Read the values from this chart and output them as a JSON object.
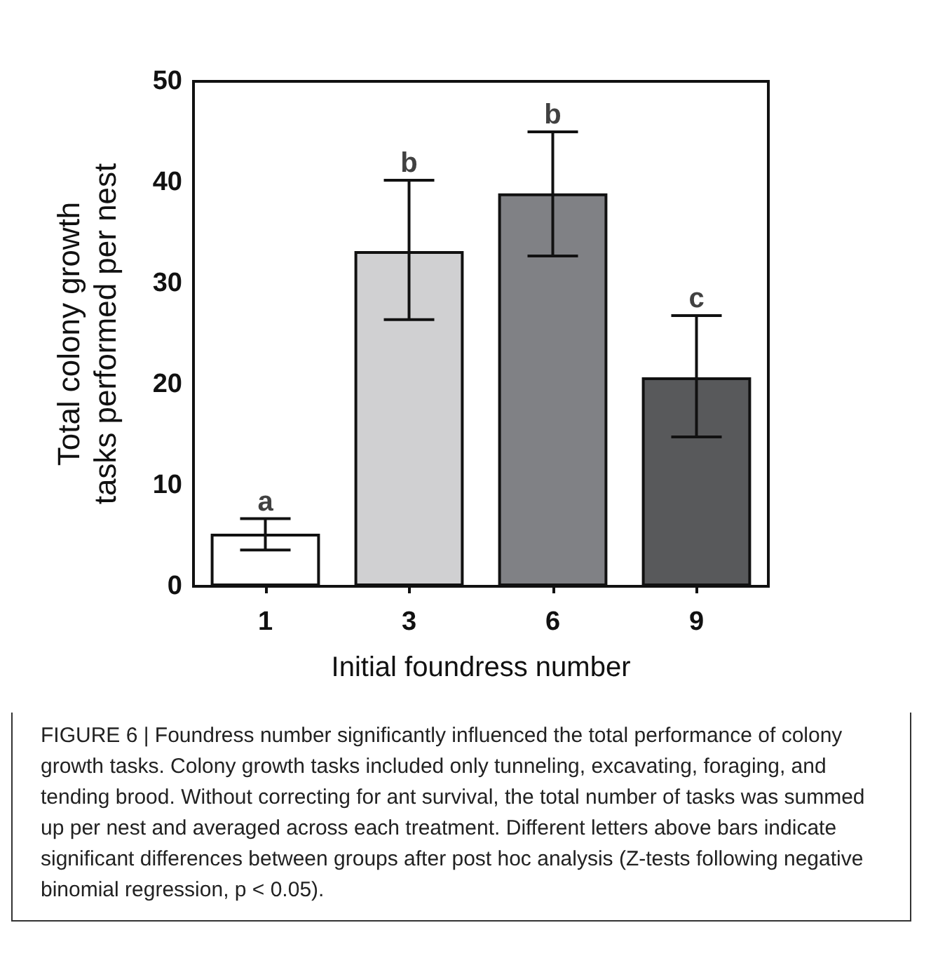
{
  "chart_data": {
    "type": "bar",
    "xlabel": "Initial foundress number",
    "ylabel": "Total colony growth\ntasks performed per nest",
    "categories": [
      "1",
      "3",
      "6",
      "9"
    ],
    "values": [
      5.2,
      33.2,
      38.9,
      20.7
    ],
    "colors": [
      "#ffffff",
      "#d0d0d2",
      "#808185",
      "#58595b"
    ],
    "errors": [
      [
        3.6,
        6.7
      ],
      [
        26.4,
        40.2
      ],
      [
        32.7,
        45
      ],
      [
        14.8,
        26.8
      ]
    ],
    "ylim": [
      0,
      50
    ],
    "yticks": [
      0,
      10,
      20,
      30,
      40,
      50
    ],
    "grid": false,
    "annotations": [
      {
        "text": "a",
        "x": "1",
        "y": 6.7
      },
      {
        "text": "b",
        "x": "3",
        "y": 40.2
      },
      {
        "text": "b",
        "x": "6",
        "y": 45
      },
      {
        "text": "c",
        "x": "9",
        "y": 26.8
      },
      "FIGURE 6 | Foundress number significantly influenced the total performance of colony growth tasks. Colony growth tasks included only tunneling, excavating, foraging, and tending brood. Without correcting for ant survival, the total number of tasks was summed up per nest and averaged across each treatment. Different letters above bars indicate significant differences between groups after post hoc analysis (Z-tests following negative binomial regression, p < 0.05)."
    ]
  }
}
